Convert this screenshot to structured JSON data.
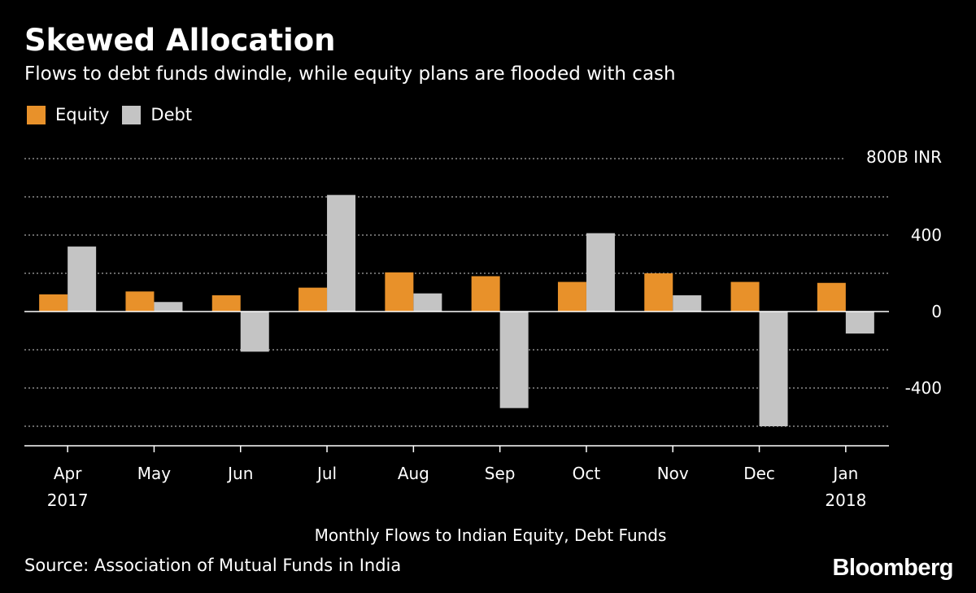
{
  "title": "Skewed Allocation",
  "subtitle": "Flows to debt funds dwindle, while equity plans are flooded with cash",
  "legend": [
    {
      "label": "Equity",
      "color": "#e8912a"
    },
    {
      "label": "Debt",
      "color": "#c4c4c4"
    }
  ],
  "source": "Source: Association of Mutual Funds in India",
  "brand": "Bloomberg",
  "chart_data": {
    "type": "bar",
    "title": "Skewed Allocation",
    "xlabel": "Monthly Flows to Indian Equity, Debt Funds",
    "ylabel": "",
    "unit_label": "800B INR",
    "ylim": [
      -700,
      800
    ],
    "yticks": [
      -400,
      0,
      400
    ],
    "ytick_labels": [
      "-400",
      "0",
      "400"
    ],
    "grid": true,
    "categories": [
      "Apr",
      "May",
      "Jun",
      "Jul",
      "Aug",
      "Sep",
      "Oct",
      "Nov",
      "Dec",
      "Jan"
    ],
    "category_sublabels": [
      "2017",
      "",
      "",
      "",
      "",
      "",
      "",
      "",
      "",
      "2018"
    ],
    "series": [
      {
        "name": "Equity",
        "color": "#e8912a",
        "values": [
          90,
          105,
          85,
          125,
          205,
          185,
          155,
          200,
          155,
          150
        ]
      },
      {
        "name": "Debt",
        "color": "#c4c4c4",
        "values": [
          340,
          50,
          -210,
          610,
          95,
          -505,
          410,
          85,
          -600,
          -115
        ]
      }
    ]
  }
}
